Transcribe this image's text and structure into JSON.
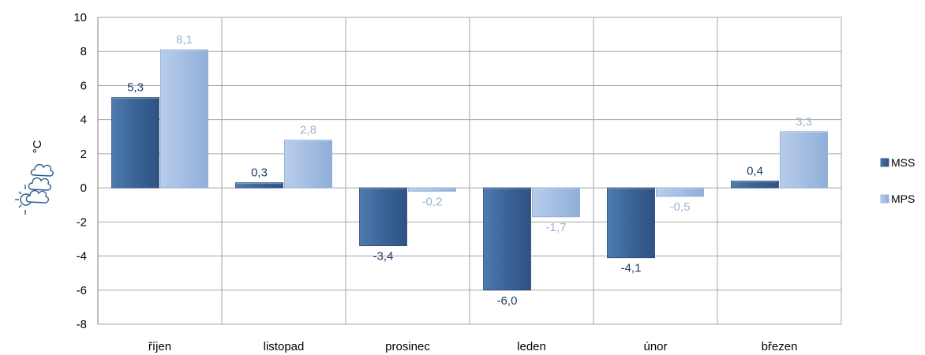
{
  "chart_data": {
    "type": "bar",
    "categories": [
      "říjen",
      "listopad",
      "prosinec",
      "leden",
      "únor",
      "březen"
    ],
    "series": [
      {
        "name": "MSS",
        "values": [
          5.3,
          0.3,
          -3.4,
          -6.0,
          -4.1,
          0.4
        ],
        "labels": [
          "5,3",
          "0,3",
          "-3,4",
          "-6,0",
          "-4,1",
          "0,4"
        ],
        "color": "#3A6497",
        "label_color": "#1F3E66"
      },
      {
        "name": "MPS",
        "values": [
          8.1,
          2.8,
          -0.2,
          -1.7,
          -0.5,
          3.3
        ],
        "labels": [
          "8,1",
          "2,8",
          "-0,2",
          "-1,7",
          "-0,5",
          "3,3"
        ],
        "color": "#A4BEE3",
        "label_color": "#9AB3D6"
      }
    ],
    "ylabel": "°C",
    "ylim": [
      -8,
      10
    ],
    "yticks": [
      "10",
      "8",
      "6",
      "4",
      "2",
      "0",
      "-2",
      "-4",
      "-6",
      "-8"
    ],
    "grid": true,
    "legend_position": "right",
    "icon": "weather-cloud-sun-icon",
    "colors": {
      "grid": "#A6A6A6",
      "axis": "#808080"
    }
  }
}
